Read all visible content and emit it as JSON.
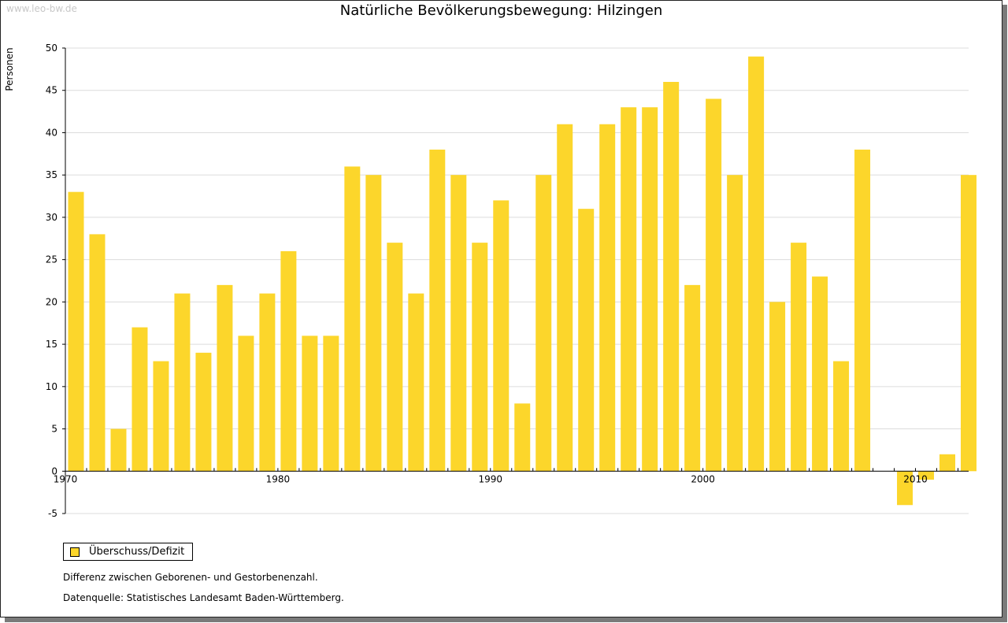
{
  "watermark": "www.leo-bw.de",
  "colors": {
    "bar": "#fcd62b",
    "grid": "#dcdcdc",
    "axis": "#000000"
  },
  "chart_data": {
    "type": "bar",
    "title": "Natürliche Bevölkerungsbewegung: Hilzingen",
    "xlabel": "",
    "ylabel": "Personen",
    "ylim": [
      -5,
      50
    ],
    "yticks": [
      -5,
      0,
      5,
      10,
      15,
      20,
      25,
      30,
      35,
      40,
      45,
      50
    ],
    "xlim": [
      1970,
      2012
    ],
    "xticks": [
      1970,
      1980,
      1990,
      2000,
      2010
    ],
    "grid": true,
    "legend_position": "bottom-left",
    "categories": [
      1970,
      1971,
      1972,
      1973,
      1974,
      1975,
      1976,
      1977,
      1978,
      1979,
      1980,
      1981,
      1982,
      1983,
      1984,
      1985,
      1986,
      1987,
      1988,
      1989,
      1990,
      1991,
      1992,
      1993,
      1994,
      1995,
      1996,
      1997,
      1998,
      1999,
      2000,
      2001,
      2002,
      2003,
      2004,
      2005,
      2006,
      2007,
      2008,
      2009,
      2010,
      2011,
      2012
    ],
    "series": [
      {
        "name": "Überschuss/Defizit",
        "values": [
          33,
          28,
          5,
          17,
          13,
          21,
          14,
          22,
          16,
          21,
          26,
          16,
          16,
          36,
          35,
          27,
          21,
          38,
          35,
          27,
          32,
          8,
          35,
          41,
          31,
          41,
          43,
          43,
          46,
          22,
          44,
          35,
          49,
          20,
          27,
          23,
          13,
          38,
          0,
          -4,
          -1,
          2,
          35
        ]
      }
    ]
  },
  "notes": [
    "Differenz zwischen Geborenen- und Gestorbenenzahl.",
    "Datenquelle: Statistisches Landesamt Baden-Württemberg."
  ]
}
